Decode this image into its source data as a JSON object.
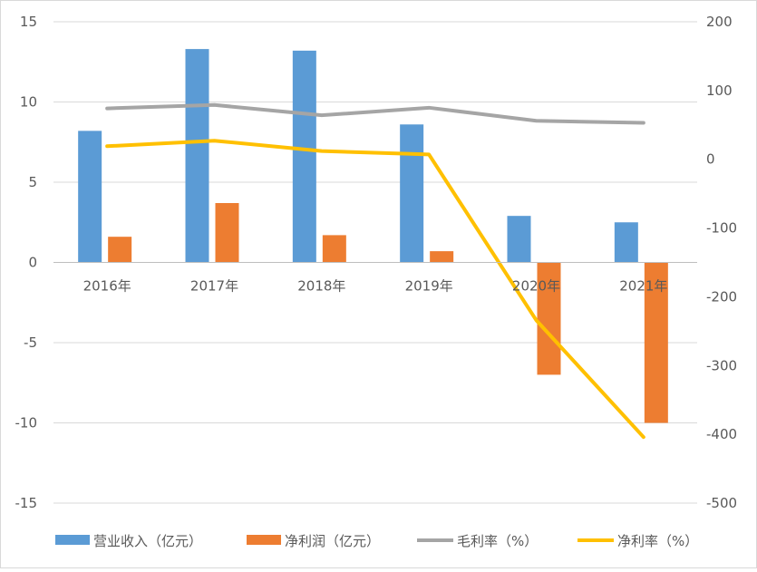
{
  "chart_data": {
    "type": "bar",
    "categories": [
      "2016年",
      "2017年",
      "2018年",
      "2019年",
      "2020年",
      "2021年"
    ],
    "left_axis": {
      "ticks": [
        "15",
        "10",
        "5",
        "0",
        "-5",
        "-10",
        "-15"
      ],
      "ylim": [
        -15,
        15
      ]
    },
    "right_axis": {
      "ticks": [
        "200",
        "100",
        "0",
        "-100",
        "-200",
        "-300",
        "-400",
        "-500"
      ],
      "ylim": [
        -500,
        200
      ]
    },
    "series": [
      {
        "name": "营业收入（亿元）",
        "type": "bar",
        "axis": "left",
        "color": "#5B9BD5",
        "values": [
          8.2,
          13.3,
          13.2,
          8.6,
          2.9,
          2.5
        ]
      },
      {
        "name": "净利润（亿元）",
        "type": "bar",
        "axis": "left",
        "color": "#ED7D31",
        "values": [
          1.6,
          3.7,
          1.7,
          0.7,
          -7.0,
          -10.0
        ]
      },
      {
        "name": "毛利率（%）",
        "type": "line",
        "axis": "right",
        "color": "#A5A5A5",
        "values": [
          74,
          79,
          64,
          75,
          56,
          53
        ]
      },
      {
        "name": "净利率（%）",
        "type": "line",
        "axis": "right",
        "color": "#FFC000",
        "values": [
          19,
          27,
          12,
          7,
          -234,
          -404
        ]
      }
    ],
    "grid": true,
    "legend": "bottom"
  }
}
